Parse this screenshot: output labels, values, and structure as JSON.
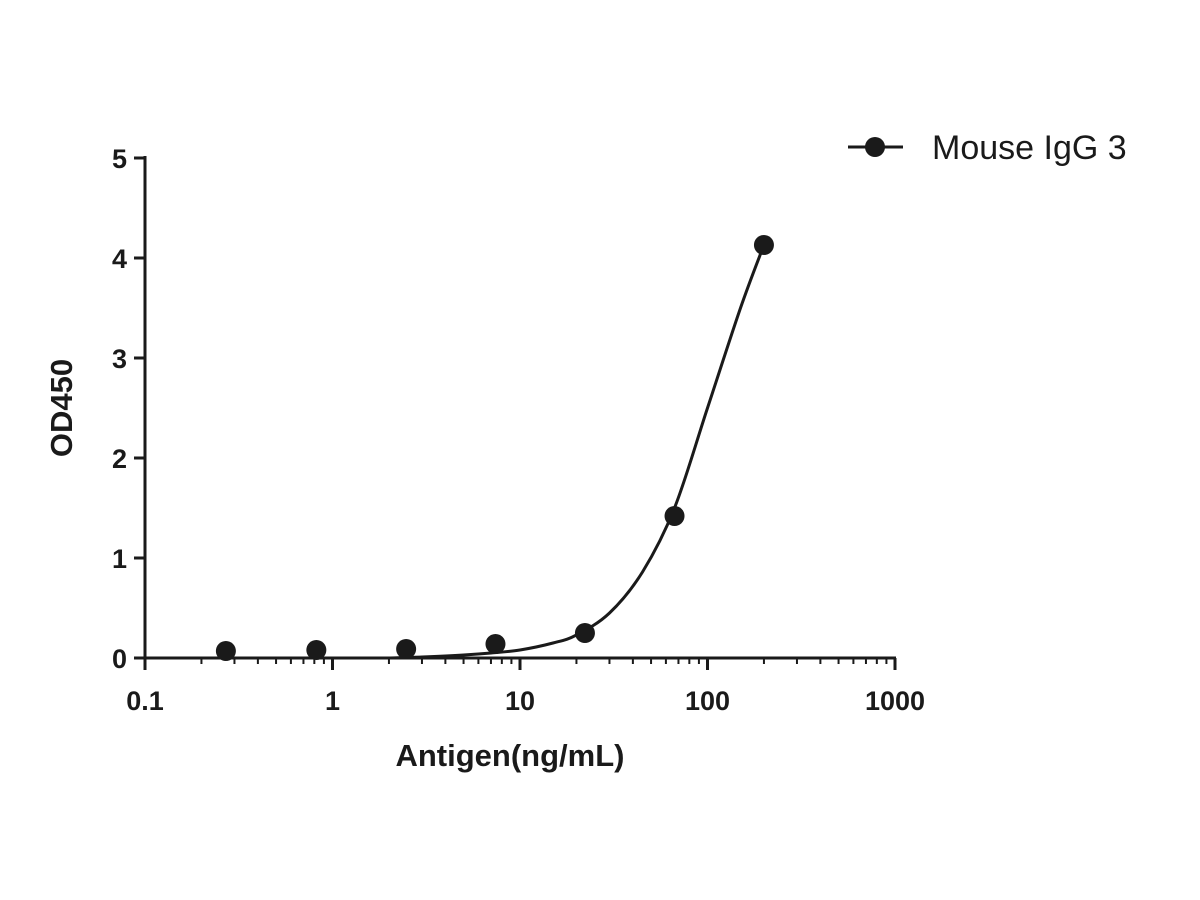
{
  "chart_data": {
    "type": "scatter",
    "xlabel": "Antigen(ng/mL)",
    "ylabel": "OD450",
    "x_scale": "log",
    "xlim": [
      0.1,
      1000
    ],
    "ylim": [
      0,
      5
    ],
    "x_ticks": [
      {
        "value": 0.1,
        "label": "0.1"
      },
      {
        "value": 1,
        "label": "1"
      },
      {
        "value": 10,
        "label": "10"
      },
      {
        "value": 100,
        "label": "100"
      },
      {
        "value": 1000,
        "label": "1000"
      }
    ],
    "y_ticks": [
      {
        "value": 0,
        "label": "0"
      },
      {
        "value": 1,
        "label": "1"
      },
      {
        "value": 2,
        "label": "2"
      },
      {
        "value": 3,
        "label": "3"
      },
      {
        "value": 4,
        "label": "4"
      },
      {
        "value": 5,
        "label": "5"
      }
    ],
    "grid": false,
    "legend_position": "top-right",
    "series": [
      {
        "name": "Mouse IgG 3",
        "color": "#1a1a1a",
        "marker": "circle",
        "x": [
          0.27,
          0.82,
          2.47,
          7.4,
          22.2,
          66.7,
          200
        ],
        "y": [
          0.07,
          0.08,
          0.09,
          0.14,
          0.25,
          1.42,
          4.13
        ],
        "fit_curve": {
          "type": "power",
          "x": [
            2,
            3,
            5,
            7,
            10,
            15,
            20,
            30,
            45,
            66.7,
            100,
            150,
            200
          ],
          "y": [
            0.0,
            0.01,
            0.03,
            0.05,
            0.08,
            0.15,
            0.23,
            0.45,
            0.86,
            1.5,
            2.5,
            3.5,
            4.13
          ]
        }
      }
    ]
  }
}
